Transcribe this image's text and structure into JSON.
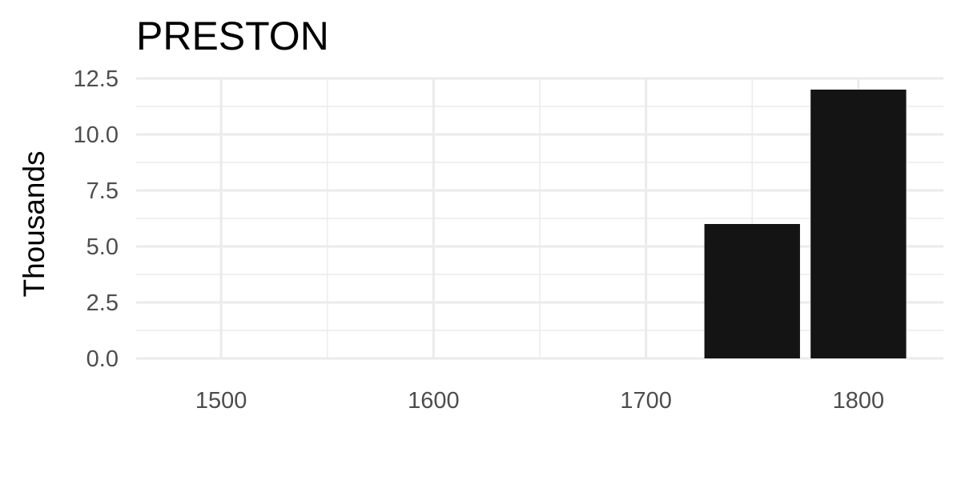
{
  "chart_data": {
    "type": "bar",
    "title": "PRESTON",
    "xlabel": "",
    "ylabel": "Thousands",
    "x": [
      1750,
      1800
    ],
    "values": [
      6,
      12
    ],
    "bar_width": 45,
    "bar_color": "#141414",
    "xlim": [
      1460,
      1840
    ],
    "ylim": [
      0,
      12.5
    ],
    "x_ticks": [
      1500,
      1600,
      1700,
      1800
    ],
    "x_tick_labels": [
      "1500",
      "1600",
      "1700",
      "1800"
    ],
    "x_minor_ticks": [
      1550,
      1650,
      1750
    ],
    "y_ticks": [
      0,
      2.5,
      5,
      7.5,
      10,
      12.5
    ],
    "y_tick_labels": [
      "0.0",
      "2.5",
      "5.0",
      "7.5",
      "10.0",
      "12.5"
    ],
    "y_minor_ticks": [
      1.25,
      3.75,
      6.25,
      8.75,
      11.25
    ],
    "grid": true,
    "legend": "none",
    "colors": {
      "grid": "#ebebeb",
      "tick_text": "#4d4d4d",
      "text": "#000000"
    }
  }
}
